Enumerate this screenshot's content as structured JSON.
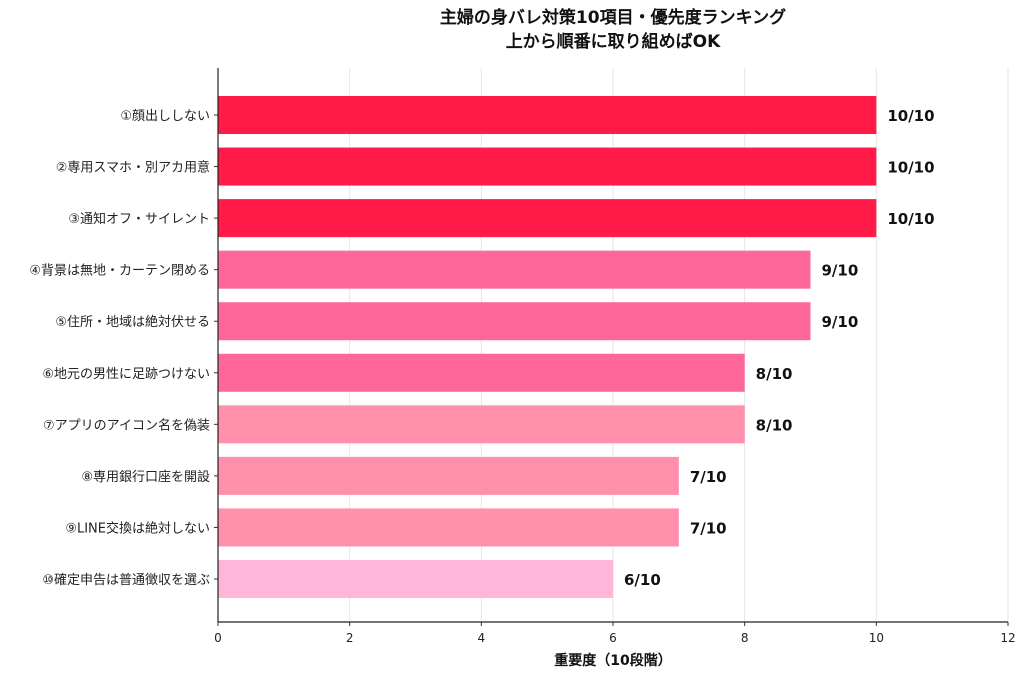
{
  "chart_data": {
    "type": "bar",
    "orientation": "horizontal",
    "title_lines": [
      "主婦の身バレ対策10項目・優先度ランキング",
      "上から順番に取り組めばOK"
    ],
    "xlabel": "重要度（10段階）",
    "ylabel": "",
    "xlim": [
      0,
      12
    ],
    "xticks": [
      0,
      2,
      4,
      6,
      8,
      10,
      12
    ],
    "grid": "vertical",
    "categories": [
      "①顔出ししない",
      "②専用スマホ・別アカ用意",
      "③通知オフ・サイレント",
      "④背景は無地・カーテン閉める",
      "⑤住所・地域は絶対伏せる",
      "⑥地元の男性に足跡つけない",
      "⑦アプリのアイコン名を偽装",
      "⑧専用銀行口座を開設",
      "⑨LINE交換は絶対しない",
      "⑩確定申告は普通徴収を選ぶ"
    ],
    "values": [
      10,
      10,
      10,
      9,
      9,
      8,
      8,
      7,
      7,
      6
    ],
    "value_labels": [
      "10/10",
      "10/10",
      "10/10",
      "9/10",
      "9/10",
      "8/10",
      "8/10",
      "7/10",
      "7/10",
      "6/10"
    ],
    "colors": [
      "#ff1a47",
      "#ff1a47",
      "#ff1a47",
      "#ff6699",
      "#ff6699",
      "#ff6699",
      "#ff8fab",
      "#ff8fab",
      "#ff8fab",
      "#ffb6d9"
    ]
  }
}
